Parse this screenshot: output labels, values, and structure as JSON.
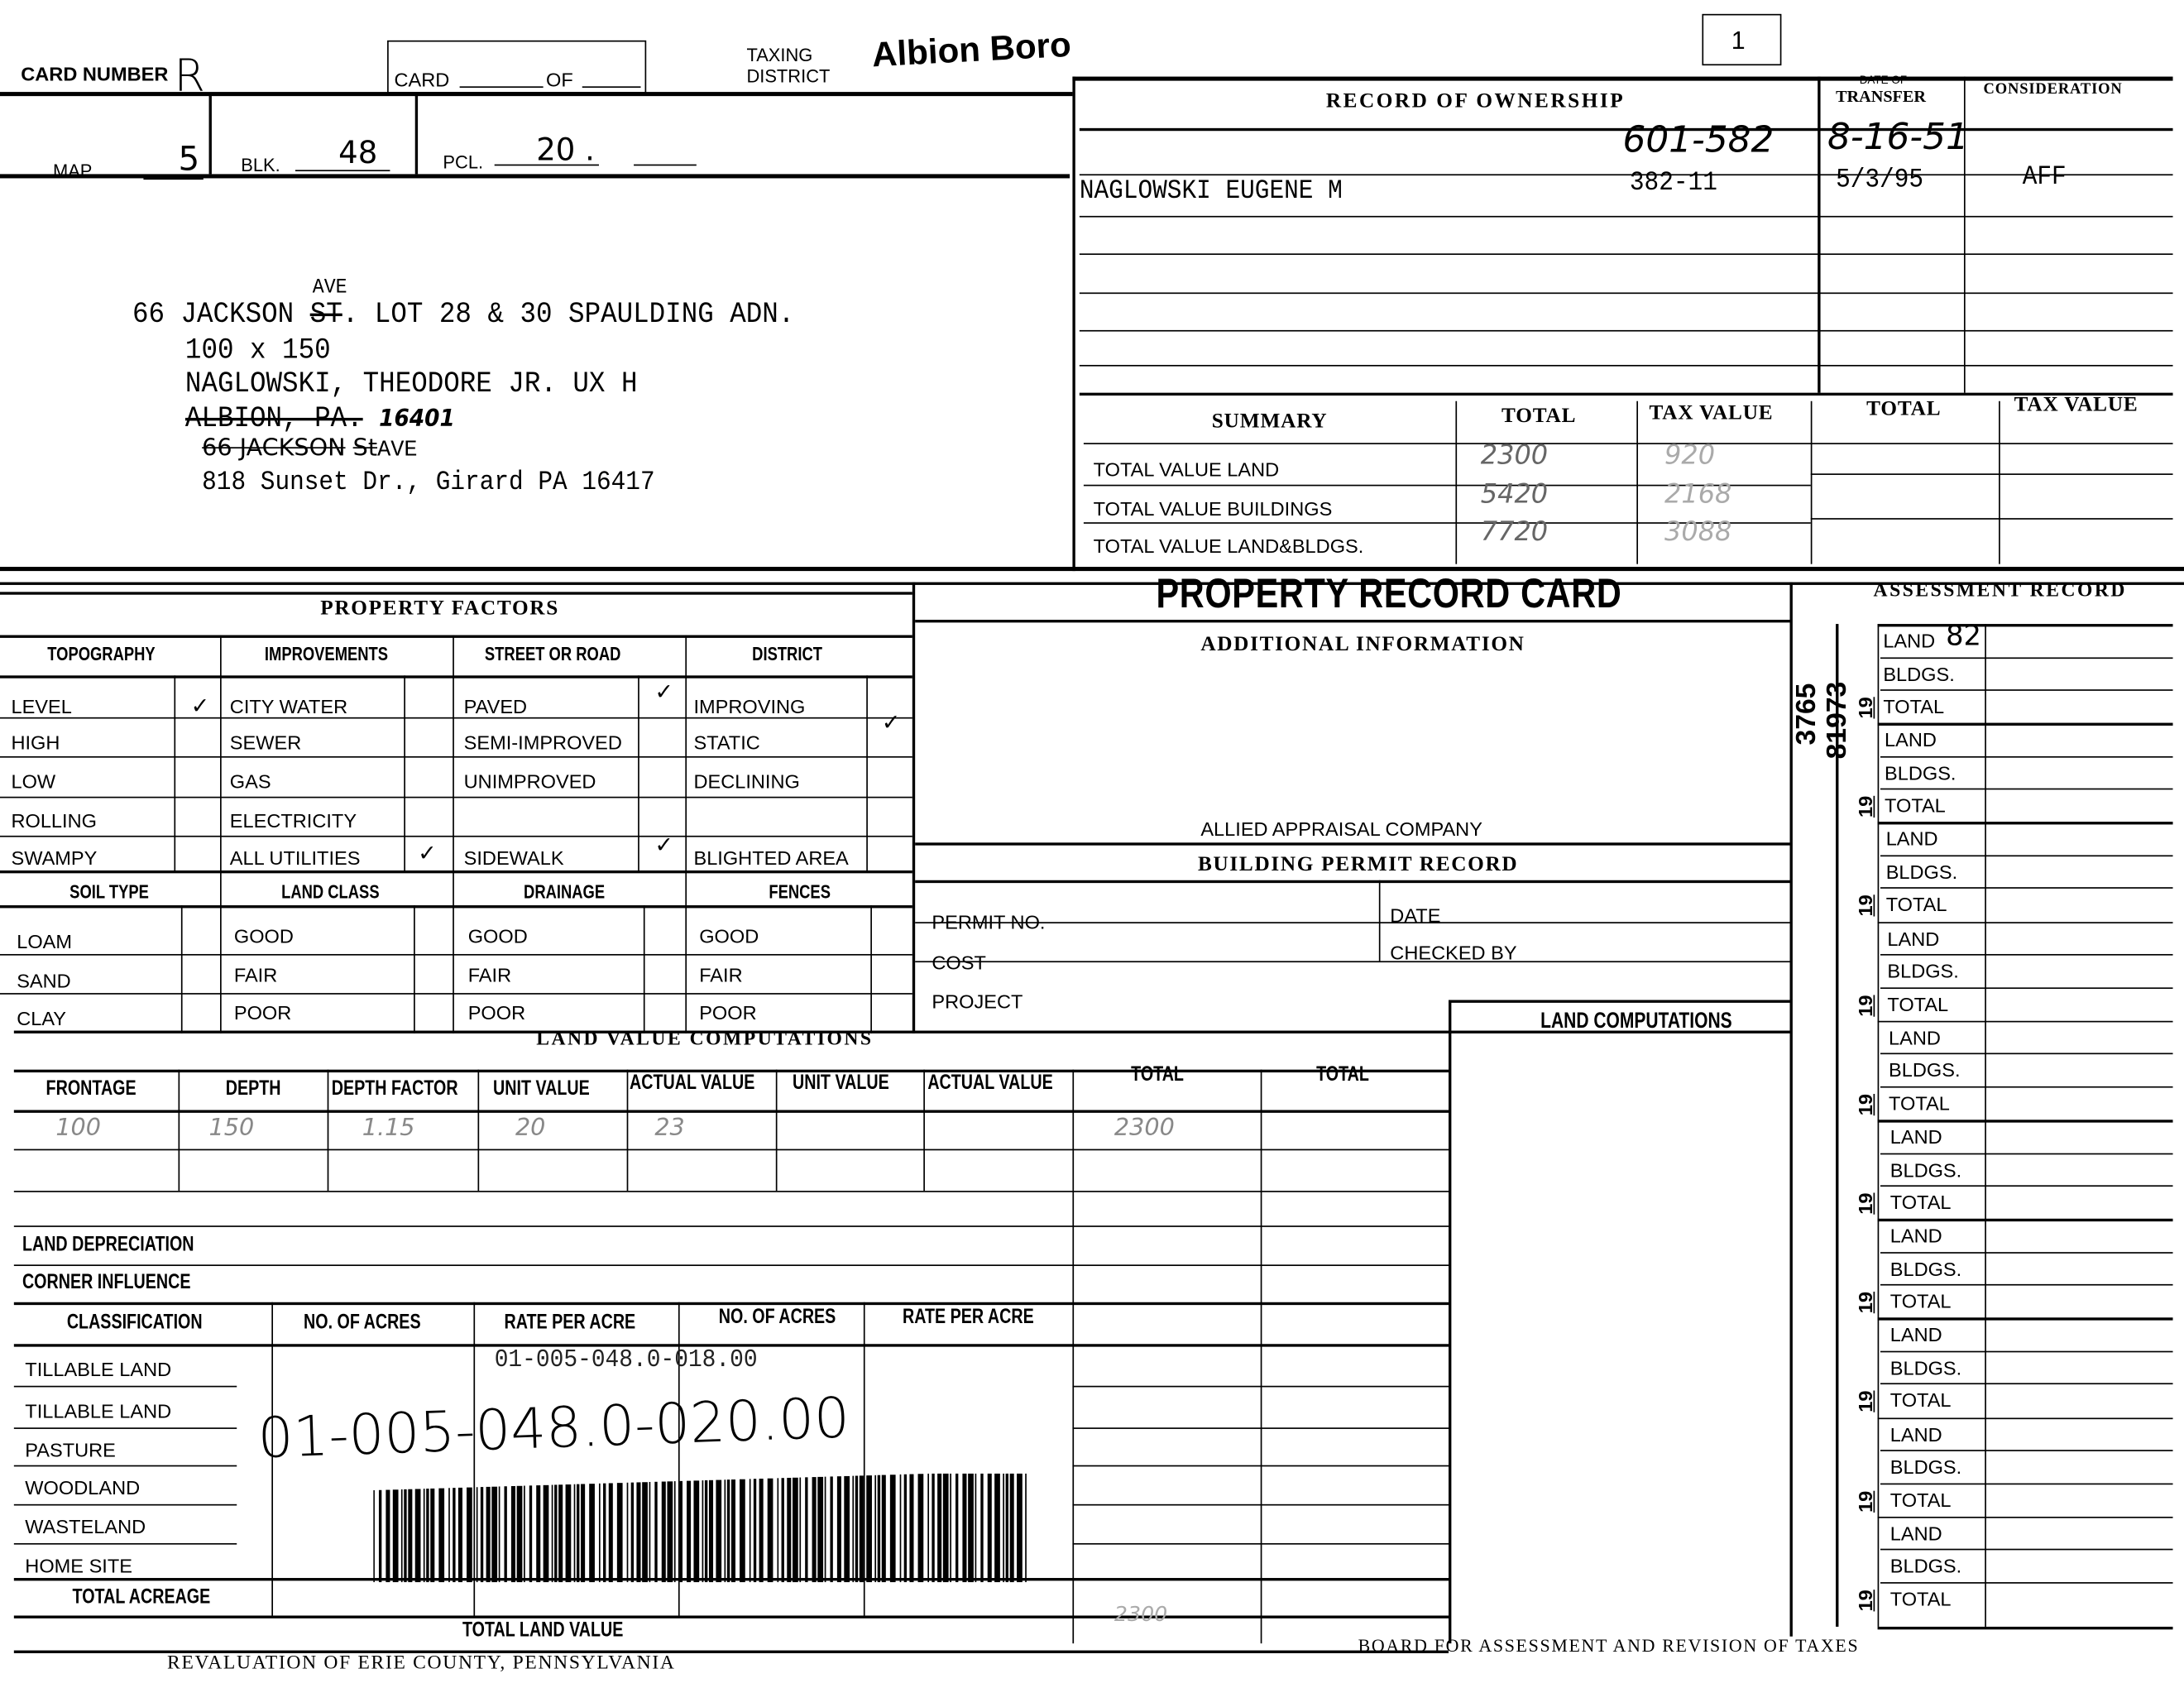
{
  "header": {
    "card_number_label": "CARD NUMBER",
    "card_number_value": "R",
    "card_of_label_card": "CARD",
    "card_of_label_of": "OF",
    "taxing_district_label_1": "TAXING",
    "taxing_district_label_2": "DISTRICT",
    "taxing_district_value": "Albion Boro",
    "box_number": "1",
    "map_label": "MAP",
    "map_value": "5",
    "blk_label": "BLK.",
    "blk_value": "48",
    "pcl_label": "PCL.",
    "pcl_value": "20 ."
  },
  "property_address": {
    "line1_prefix": "66 JACKSON",
    "line1_correction": "AVE",
    "line1_struck": "ST",
    "line1_rest": ". LOT 28 & 30 SPAULDING ADN.",
    "line2": "100 x 150",
    "line3": "NAGLOWSKI, THEODORE JR. UX H",
    "line4_struck": "ALBION, PA.",
    "line4_hand": "16401",
    "line5_hand": "66 JACKSON",
    "line5_struck": "St",
    "line5_rest": "AVE",
    "line6": "818 Sunset Dr., Girard PA 16417"
  },
  "ownership": {
    "title": "RECORD OF OWNERSHIP",
    "date_header_small": "DATE OF",
    "date_header": "TRANSFER",
    "consideration_header": "CONSIDERATION",
    "rows": [
      {
        "name": "",
        "deed": "601-582",
        "date": "8-16-51",
        "consideration": ""
      },
      {
        "name": "NAGLOWSKI EUGENE M",
        "deed": "382-11",
        "date": "5/3/95",
        "consideration": "AFF"
      }
    ]
  },
  "summary": {
    "title": "SUMMARY",
    "col_total": "TOTAL",
    "col_tax_value": "TAX VALUE",
    "col_total_2": "TOTAL",
    "col_tax_value_2": "TAX VALUE",
    "rows": [
      {
        "label": "TOTAL VALUE LAND",
        "total": "2300",
        "tax_value": "920"
      },
      {
        "label": "TOTAL VALUE BUILDINGS",
        "total": "5420",
        "tax_value": "2168"
      },
      {
        "label": "TOTAL VALUE LAND&BLDGS.",
        "total": "7720",
        "tax_value": "3088"
      }
    ]
  },
  "property_factors": {
    "title": "PROPERTY FACTORS",
    "topography": {
      "header": "TOPOGRAPHY",
      "items": [
        "LEVEL",
        "HIGH",
        "LOW",
        "ROLLING",
        "SWAMPY"
      ],
      "checked": "LEVEL"
    },
    "improvements": {
      "header": "IMPROVEMENTS",
      "items": [
        "CITY WATER",
        "SEWER",
        "GAS",
        "ELECTRICITY",
        "ALL UTILITIES"
      ],
      "checked": [
        "CITY WATER",
        "ALL UTILITIES"
      ]
    },
    "street": {
      "header": "STREET OR ROAD",
      "items": [
        "PAVED",
        "SEMI-IMPROVED",
        "UNIMPROVED",
        "",
        "SIDEWALK"
      ],
      "checked": [
        "PAVED",
        "SIDEWALK"
      ]
    },
    "district": {
      "header": "DISTRICT",
      "items": [
        "IMPROVING",
        "STATIC",
        "DECLINING",
        "",
        "BLIGHTED AREA"
      ],
      "checked": "STATIC"
    },
    "soil": {
      "header": "SOIL TYPE",
      "items": [
        "LOAM",
        "SAND",
        "CLAY"
      ]
    },
    "land_class": {
      "header": "LAND CLASS",
      "items": [
        "GOOD",
        "FAIR",
        "POOR"
      ]
    },
    "drainage": {
      "header": "DRAINAGE",
      "items": [
        "GOOD",
        "FAIR",
        "POOR"
      ]
    },
    "fences": {
      "header": "FENCES",
      "items": [
        "GOOD",
        "FAIR",
        "POOR"
      ]
    },
    "check_mark": "✓"
  },
  "card_title": "PROPERTY RECORD CARD",
  "additional_info": {
    "title": "ADDITIONAL INFORMATION",
    "appraiser": "ALLIED APPRAISAL COMPANY"
  },
  "building_permit": {
    "title": "BUILDING PERMIT RECORD",
    "permit_no": "PERMIT NO.",
    "date": "DATE",
    "cost": "COST",
    "checked_by": "CHECKED BY",
    "project": "PROJECT"
  },
  "land_value": {
    "title": "LAND VALUE COMPUTATIONS",
    "columns": [
      "FRONTAGE",
      "DEPTH",
      "DEPTH FACTOR",
      "UNIT VALUE",
      "ACTUAL VALUE",
      "UNIT VALUE",
      "ACTUAL VALUE",
      "TOTAL",
      "TOTAL"
    ],
    "row1": [
      "100",
      "150",
      "1.15",
      "20",
      "23",
      "",
      "",
      "2300",
      ""
    ],
    "land_depreciation": "LAND DEPRECIATION",
    "corner_influence": "CORNER INFLUENCE",
    "class_columns": [
      "CLASSIFICATION",
      "NO. OF ACRES",
      "RATE PER ACRE",
      "NO. OF ACRES",
      "RATE PER ACRE"
    ],
    "class_rows": [
      "TILLABLE LAND",
      "TILLABLE LAND",
      "PASTURE",
      "WOODLAND",
      "WASTELAND",
      "HOME SITE"
    ],
    "total_acreage": "TOTAL ACREAGE",
    "total_land_value": "TOTAL LAND VALUE",
    "total_land_value_hand": "2300"
  },
  "land_computations": {
    "title": "LAND COMPUTATIONS"
  },
  "assessment": {
    "title": "ASSESSMENT RECORD",
    "year_prefix": "19",
    "labels": [
      "LAND",
      "BLDGS.",
      "TOTAL"
    ],
    "stamp_1": "3765",
    "stamp_2": "81973",
    "stamp_3": "82"
  },
  "parcel": {
    "printed_id": "01-005-048.0-018.00",
    "handwritten_id": "01-005-048.0-020.00"
  },
  "footer": {
    "left": "REVALUATION OF ERIE COUNTY, PENNSYLVANIA",
    "right": "BOARD FOR ASSESSMENT AND REVISION OF TAXES"
  }
}
